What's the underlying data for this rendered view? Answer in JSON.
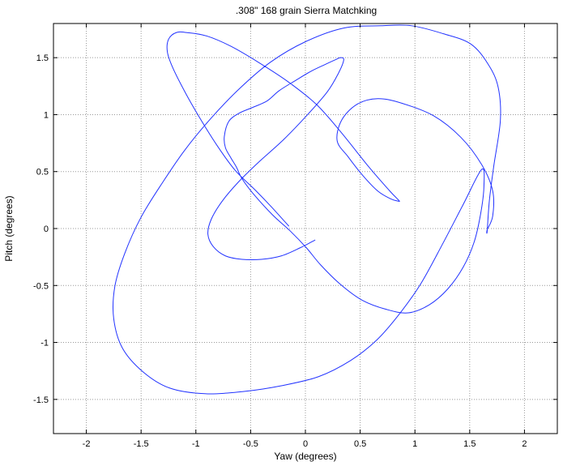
{
  "chart_data": {
    "type": "line",
    "title": ".308\" 168 grain Sierra Matchking",
    "xlabel": "Yaw (degrees)",
    "ylabel": "Pitch (degrees)",
    "xlim": [
      -2.3,
      2.3
    ],
    "ylim": [
      -1.8,
      1.8
    ],
    "xticks": [
      -2,
      -1.5,
      -1,
      -0.5,
      0,
      0.5,
      1,
      1.5,
      2
    ],
    "xtick_labels": [
      "-2",
      "-1.5",
      "-1",
      "-0.5",
      "0",
      "0.5",
      "1",
      "1.5",
      "2"
    ],
    "yticks": [
      -1.5,
      -1,
      -0.5,
      0,
      0.5,
      1,
      1.5
    ],
    "ytick_labels": [
      "-1.5",
      "-1",
      "-0.5",
      "0",
      "0.5",
      "1",
      "1.5"
    ],
    "grid": true,
    "color": "#2233ff",
    "series": [
      {
        "x": [
          -0.15,
          -0.31,
          -0.45,
          -0.64,
          -0.8,
          -0.97,
          -1.1,
          -1.21,
          -1.26,
          -1.25,
          -1.18,
          -1.08,
          -0.9,
          -0.68,
          -0.43,
          -0.16,
          0.1,
          0.33,
          0.58,
          0.77,
          0.85,
          0.85,
          0.78,
          0.66,
          0.52,
          0.39,
          0.29,
          0.33,
          0.47,
          0.66,
          0.88,
          1.17,
          1.42,
          1.61,
          1.71,
          1.71,
          1.66,
          1.66,
          1.68,
          1.72,
          1.78,
          1.76,
          1.67,
          1.51,
          1.26,
          0.97,
          0.69,
          0.35,
          0.0,
          -0.32,
          -0.6,
          -0.86,
          -1.1,
          -1.3,
          -1.5,
          -1.65,
          -1.74,
          -1.75,
          -1.67,
          -1.48,
          -1.24,
          -0.92,
          -0.56,
          -0.22,
          0.12,
          0.41,
          0.65,
          0.85,
          1.05,
          1.25,
          1.44,
          1.61,
          1.63,
          1.6,
          1.54,
          1.44,
          1.3,
          1.13,
          0.94,
          0.74,
          0.52,
          0.32,
          0.14,
          0.01,
          -0.14,
          -0.3,
          -0.48,
          -0.58,
          -0.63,
          -0.68,
          -0.73,
          -0.74,
          -0.7,
          -0.61,
          -0.49,
          -0.35,
          -0.24,
          -0.09,
          0.05,
          0.18,
          0.27,
          0.32,
          0.35,
          0.3,
          0.2,
          0.02,
          -0.2,
          -0.43,
          -0.61,
          -0.76,
          -0.86,
          -0.89,
          -0.84,
          -0.73,
          -0.58,
          -0.4,
          -0.22,
          -0.05,
          0.09
        ],
        "y": [
          0.02,
          0.19,
          0.33,
          0.51,
          0.72,
          0.98,
          1.2,
          1.41,
          1.55,
          1.66,
          1.72,
          1.72,
          1.69,
          1.6,
          1.46,
          1.29,
          1.09,
          0.84,
          0.54,
          0.33,
          0.25,
          0.24,
          0.26,
          0.33,
          0.47,
          0.63,
          0.77,
          0.95,
          1.09,
          1.14,
          1.1,
          0.99,
          0.8,
          0.56,
          0.33,
          0.11,
          -0.01,
          -0.02,
          0.25,
          0.55,
          0.95,
          1.24,
          1.44,
          1.62,
          1.71,
          1.78,
          1.78,
          1.76,
          1.64,
          1.46,
          1.23,
          0.97,
          0.69,
          0.41,
          0.1,
          -0.22,
          -0.51,
          -0.79,
          -1.05,
          -1.26,
          -1.4,
          -1.45,
          -1.43,
          -1.38,
          -1.3,
          -1.16,
          -0.98,
          -0.76,
          -0.49,
          -0.14,
          0.21,
          0.52,
          0.37,
          0.13,
          -0.12,
          -0.34,
          -0.53,
          -0.67,
          -0.74,
          -0.71,
          -0.63,
          -0.49,
          -0.32,
          -0.17,
          -0.02,
          0.12,
          0.31,
          0.44,
          0.54,
          0.62,
          0.71,
          0.81,
          0.94,
          1.01,
          1.06,
          1.12,
          1.21,
          1.3,
          1.38,
          1.44,
          1.48,
          1.5,
          1.48,
          1.36,
          1.2,
          1.0,
          0.78,
          0.58,
          0.41,
          0.24,
          0.08,
          -0.05,
          -0.16,
          -0.24,
          -0.27,
          -0.27,
          -0.24,
          -0.17,
          -0.1
        ]
      }
    ]
  }
}
